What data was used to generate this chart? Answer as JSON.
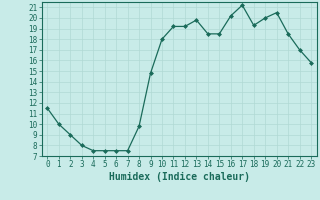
{
  "x": [
    0,
    1,
    2,
    3,
    4,
    5,
    6,
    7,
    8,
    9,
    10,
    11,
    12,
    13,
    14,
    15,
    16,
    17,
    18,
    19,
    20,
    21,
    22,
    23
  ],
  "y": [
    11.5,
    10.0,
    9.0,
    8.0,
    7.5,
    7.5,
    7.5,
    7.5,
    9.8,
    14.8,
    18.0,
    19.2,
    19.2,
    19.8,
    18.5,
    18.5,
    20.2,
    21.2,
    19.3,
    20.0,
    20.5,
    18.5,
    17.0,
    15.8
  ],
  "xlabel": "Humidex (Indice chaleur)",
  "ylim": [
    7,
    21.5
  ],
  "xlim": [
    -0.5,
    23.5
  ],
  "yticks": [
    7,
    8,
    9,
    10,
    11,
    12,
    13,
    14,
    15,
    16,
    17,
    18,
    19,
    20,
    21
  ],
  "xticks": [
    0,
    1,
    2,
    3,
    4,
    5,
    6,
    7,
    8,
    9,
    10,
    11,
    12,
    13,
    14,
    15,
    16,
    17,
    18,
    19,
    20,
    21,
    22,
    23
  ],
  "line_color": "#1a6b5a",
  "marker_color": "#1a6b5a",
  "bg_color": "#c8ebe8",
  "grid_color": "#b0d9d4",
  "axis_color": "#1a6b5a",
  "tick_fontsize": 5.5,
  "xlabel_fontsize": 7
}
